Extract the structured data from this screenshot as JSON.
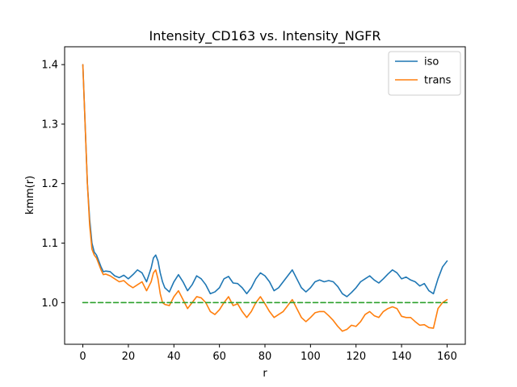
{
  "chart_data": {
    "type": "line",
    "title": "Intensity_CD163 vs. Intensity_NGFR",
    "xlabel": "r",
    "ylabel": "kmm(r)",
    "xlim": [
      -8,
      168
    ],
    "ylim": [
      0.93,
      1.43
    ],
    "xticks": [
      0,
      20,
      40,
      60,
      80,
      100,
      120,
      140,
      160
    ],
    "xtick_labels": [
      "0",
      "20",
      "40",
      "60",
      "80",
      "100",
      "120",
      "140",
      "160"
    ],
    "yticks": [
      1.0,
      1.1,
      1.2,
      1.3,
      1.4
    ],
    "ytick_labels": [
      "1.0",
      "1.1",
      "1.2",
      "1.3",
      "1.4"
    ],
    "grid": false,
    "legend_position": "top-right",
    "series": [
      {
        "name": "iso",
        "color": "#1f77b4",
        "dashed": false,
        "show_in_legend": true,
        "x": [
          0,
          1,
          2,
          3,
          4,
          5,
          6,
          7,
          8,
          9,
          10,
          12,
          14,
          16,
          18,
          20,
          22,
          24,
          26,
          28,
          30,
          31,
          32,
          33,
          34,
          35,
          36,
          38,
          40,
          42,
          44,
          46,
          48,
          50,
          52,
          54,
          56,
          58,
          60,
          62,
          64,
          66,
          68,
          70,
          72,
          74,
          76,
          78,
          80,
          82,
          84,
          86,
          88,
          90,
          92,
          94,
          96,
          98,
          100,
          102,
          104,
          106,
          108,
          110,
          112,
          114,
          116,
          118,
          120,
          122,
          124,
          126,
          128,
          130,
          132,
          134,
          136,
          138,
          140,
          142,
          144,
          146,
          148,
          150,
          152,
          154,
          156,
          158,
          160
        ],
        "y": [
          1.4,
          1.3,
          1.2,
          1.14,
          1.1,
          1.085,
          1.08,
          1.07,
          1.06,
          1.052,
          1.053,
          1.052,
          1.045,
          1.042,
          1.046,
          1.04,
          1.047,
          1.055,
          1.05,
          1.035,
          1.058,
          1.075,
          1.08,
          1.07,
          1.05,
          1.035,
          1.025,
          1.018,
          1.035,
          1.047,
          1.035,
          1.02,
          1.03,
          1.045,
          1.04,
          1.03,
          1.015,
          1.018,
          1.025,
          1.04,
          1.044,
          1.033,
          1.032,
          1.025,
          1.015,
          1.025,
          1.04,
          1.05,
          1.045,
          1.035,
          1.02,
          1.025,
          1.035,
          1.045,
          1.055,
          1.04,
          1.025,
          1.018,
          1.025,
          1.035,
          1.038,
          1.035,
          1.037,
          1.035,
          1.027,
          1.015,
          1.01,
          1.017,
          1.025,
          1.035,
          1.04,
          1.045,
          1.038,
          1.033,
          1.04,
          1.048,
          1.055,
          1.05,
          1.04,
          1.043,
          1.038,
          1.035,
          1.028,
          1.032,
          1.02,
          1.015,
          1.04,
          1.06,
          1.07
        ]
      },
      {
        "name": "trans",
        "color": "#ff7f0e",
        "dashed": false,
        "show_in_legend": true,
        "x": [
          0,
          1,
          2,
          3,
          4,
          5,
          6,
          7,
          8,
          9,
          10,
          12,
          14,
          16,
          18,
          20,
          22,
          24,
          26,
          28,
          30,
          31,
          32,
          33,
          34,
          35,
          36,
          38,
          40,
          42,
          44,
          46,
          48,
          50,
          52,
          54,
          56,
          58,
          60,
          62,
          64,
          66,
          68,
          70,
          72,
          74,
          76,
          78,
          80,
          82,
          84,
          86,
          88,
          90,
          92,
          94,
          96,
          98,
          100,
          102,
          104,
          106,
          108,
          110,
          112,
          114,
          116,
          118,
          120,
          122,
          124,
          126,
          128,
          130,
          132,
          134,
          136,
          138,
          140,
          142,
          144,
          146,
          148,
          150,
          152,
          154,
          156,
          158,
          160
        ],
        "y": [
          1.4,
          1.3,
          1.2,
          1.13,
          1.09,
          1.08,
          1.075,
          1.065,
          1.055,
          1.047,
          1.048,
          1.045,
          1.04,
          1.035,
          1.037,
          1.03,
          1.025,
          1.03,
          1.035,
          1.02,
          1.035,
          1.05,
          1.055,
          1.04,
          1.015,
          1.0,
          0.997,
          0.995,
          1.01,
          1.02,
          1.005,
          0.99,
          1.0,
          1.01,
          1.008,
          1.0,
          0.985,
          0.98,
          0.988,
          1.0,
          1.01,
          0.995,
          0.998,
          0.985,
          0.975,
          0.985,
          1.0,
          1.01,
          0.998,
          0.985,
          0.975,
          0.98,
          0.985,
          0.995,
          1.005,
          0.99,
          0.975,
          0.968,
          0.975,
          0.983,
          0.985,
          0.985,
          0.978,
          0.97,
          0.96,
          0.952,
          0.955,
          0.962,
          0.96,
          0.968,
          0.98,
          0.985,
          0.978,
          0.975,
          0.985,
          0.99,
          0.993,
          0.99,
          0.977,
          0.975,
          0.975,
          0.968,
          0.962,
          0.963,
          0.958,
          0.957,
          0.99,
          1.0,
          1.005
        ]
      },
      {
        "name": "",
        "color": "#2ca02c",
        "dashed": true,
        "show_in_legend": false,
        "x": [
          0,
          160
        ],
        "y": [
          1.0,
          1.0
        ]
      }
    ]
  }
}
